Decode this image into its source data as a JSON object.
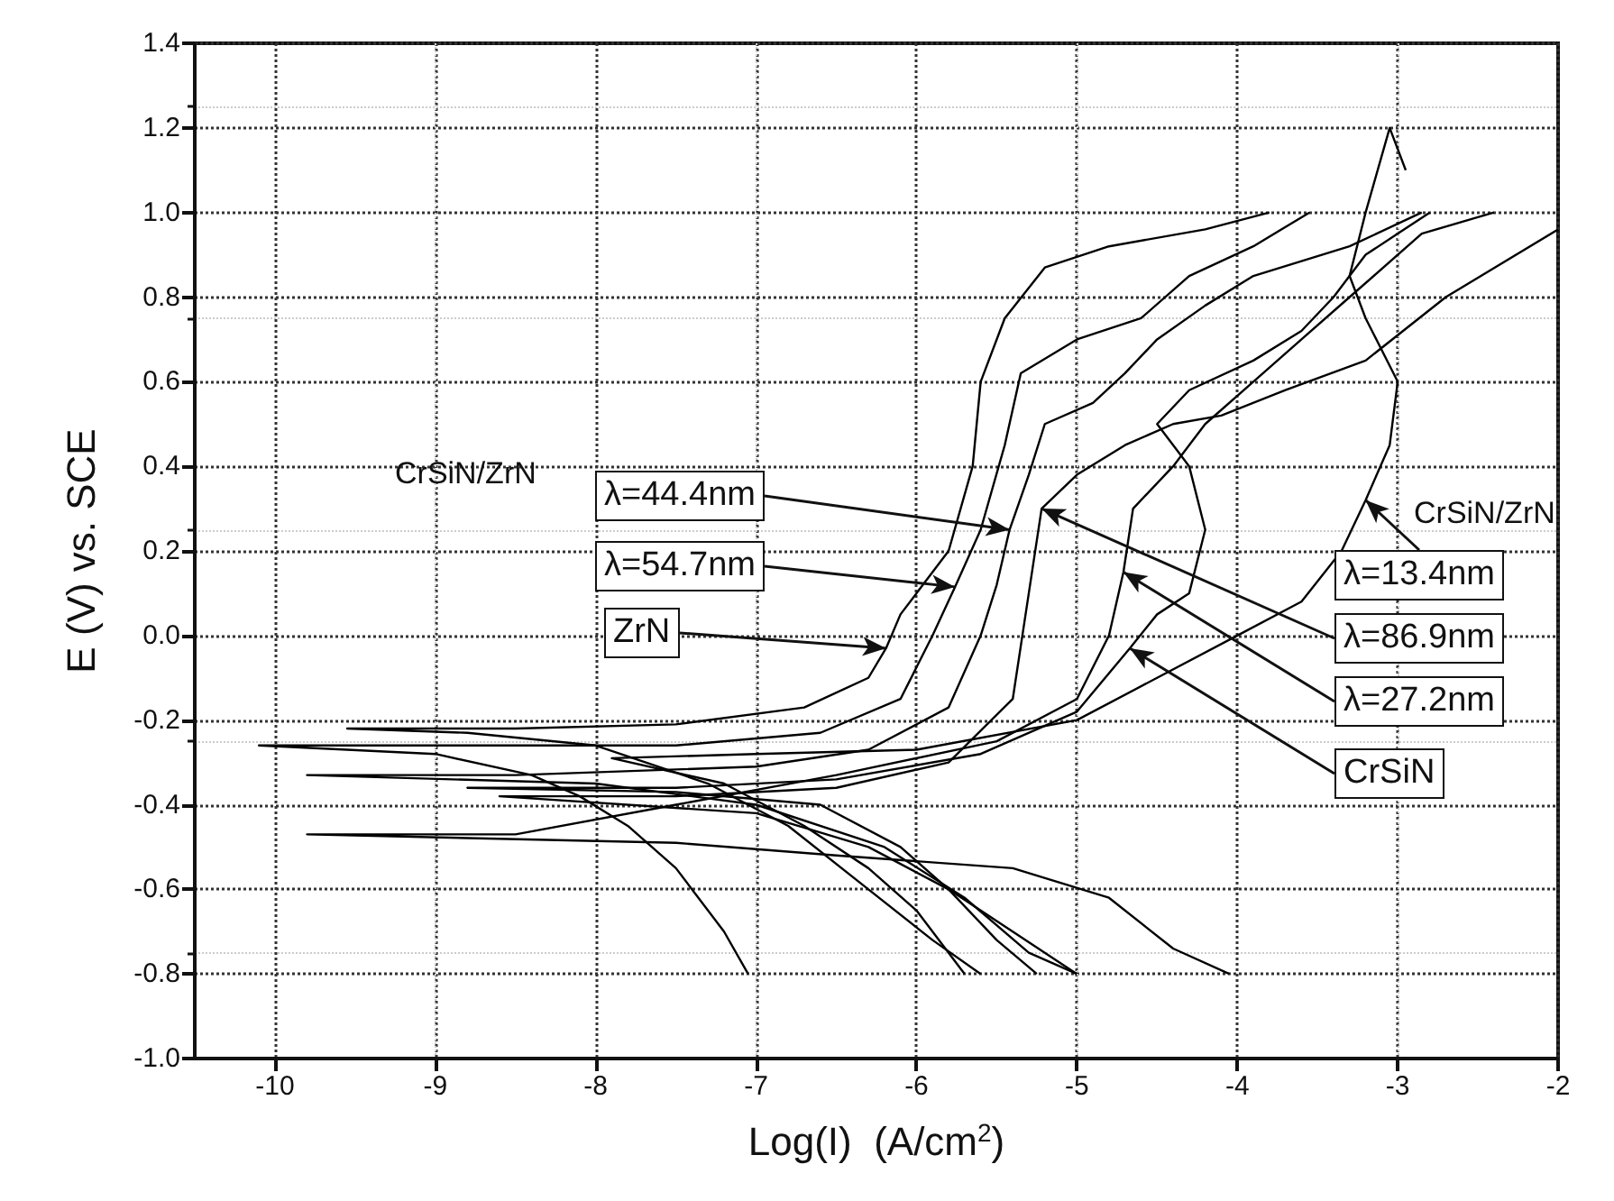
{
  "chart_data": {
    "type": "line",
    "xlabel": "Log(I)  (A/cm$^{2}$)",
    "ylabel": "E (V) vs. SCE",
    "xlim": [
      -10.5,
      -2
    ],
    "xticks": [
      -10,
      -9,
      -8,
      -7,
      -6,
      -5,
      -4,
      -3,
      -2
    ],
    "ylim": [
      -1,
      1.4
    ],
    "yticks": [
      {
        "value": -1,
        "label": "-1.0"
      },
      {
        "value": -0.8,
        "label": "-0.8"
      },
      {
        "value": -0.6,
        "label": "-0.6"
      },
      {
        "value": -0.4,
        "label": "-0.4"
      },
      {
        "value": -0.2,
        "label": "-0.2"
      },
      {
        "value": 0,
        "label": "0.0"
      },
      {
        "value": 0.2,
        "label": "0.2"
      },
      {
        "value": 0.4,
        "label": "0.4"
      },
      {
        "value": 0.6,
        "label": "0.6"
      },
      {
        "value": 0.8,
        "label": "0.8"
      },
      {
        "value": 1,
        "label": "1.0"
      },
      {
        "value": 1.2,
        "label": "1.2"
      },
      {
        "value": 1.4,
        "label": "1.4"
      }
    ],
    "grid": true,
    "line_style": "solid",
    "series": [
      {
        "color": "#000000",
        "x": [
          -5.6,
          -5.9,
          -6.3,
          -6.8,
          -7.3,
          -8,
          -8.8,
          -9.55,
          -8.5,
          -7.5,
          -6.7,
          -6.3,
          -6.19,
          -6.1,
          -5.8,
          -5.65,
          -5.6,
          -5.45,
          -5.2,
          -4.8,
          -4.2,
          -3.8
        ],
        "values": [
          -0.8,
          -0.72,
          -0.6,
          -0.45,
          -0.35,
          -0.26,
          -0.23,
          -0.22,
          -0.22,
          -0.21,
          -0.17,
          -0.1,
          -0.03,
          0.05,
          0.2,
          0.4,
          0.6,
          0.75,
          0.87,
          0.92,
          0.96,
          1.0
        ]
      },
      {
        "color": "#000000",
        "x": [
          -7.05,
          -7.2,
          -7.5,
          -7.8,
          -8.1,
          -8.4,
          -9,
          -10.1,
          -9,
          -7.5,
          -6.6,
          -6.1,
          -5.9,
          -5.76,
          -5.6,
          -5.45,
          -5.35,
          -5,
          -4.6,
          -4.3,
          -3.9,
          -3.55
        ],
        "values": [
          -0.8,
          -0.7,
          -0.55,
          -0.45,
          -0.38,
          -0.33,
          -0.28,
          -0.26,
          -0.26,
          -0.26,
          -0.23,
          -0.15,
          0,
          0.115,
          0.25,
          0.45,
          0.62,
          0.7,
          0.75,
          0.85,
          0.92,
          1.0
        ]
      },
      {
        "color": "#000000",
        "x": [
          -5,
          -5.3,
          -5.7,
          -6.2,
          -7,
          -8,
          -9.8,
          -8.5,
          -7,
          -6.3,
          -5.8,
          -5.6,
          -5.5,
          -5.42,
          -5.3,
          -5.2,
          -4.9,
          -4.7,
          -4.5,
          -4.2,
          -3.9,
          -3.3,
          -2.85
        ],
        "values": [
          -0.8,
          -0.75,
          -0.62,
          -0.5,
          -0.4,
          -0.35,
          -0.33,
          -0.33,
          -0.31,
          -0.27,
          -0.17,
          0,
          0.12,
          0.25,
          0.38,
          0.5,
          0.55,
          0.62,
          0.7,
          0.78,
          0.85,
          0.92,
          1.0
        ]
      },
      {
        "color": "#000000",
        "x": [
          -5.25,
          -5.5,
          -5.8,
          -6.3,
          -7,
          -8.6,
          -7.5,
          -6.5,
          -5.8,
          -5.4,
          -5.3,
          -5.22,
          -5,
          -4.7,
          -4.4,
          -4.1,
          -3.7,
          -3.2,
          -2.7,
          -2
        ],
        "values": [
          -0.8,
          -0.72,
          -0.6,
          -0.5,
          -0.42,
          -0.38,
          -0.38,
          -0.36,
          -0.3,
          -0.15,
          0.1,
          0.3,
          0.38,
          0.45,
          0.5,
          0.52,
          0.58,
          0.65,
          0.8,
          0.96
        ]
      },
      {
        "color": "#000000",
        "x": [
          -4.05,
          -4.4,
          -4.8,
          -5.4,
          -6.5,
          -7.5,
          -9.8,
          -8.5,
          -7.5,
          -6.5,
          -5.5,
          -5,
          -4.8,
          -4.71,
          -4.65,
          -4.4,
          -4.2,
          -3.9,
          -3.6,
          -3.3,
          -2.85,
          -2.4
        ],
        "values": [
          -0.8,
          -0.74,
          -0.62,
          -0.55,
          -0.52,
          -0.49,
          -0.47,
          -0.47,
          -0.4,
          -0.33,
          -0.25,
          -0.15,
          0,
          0.15,
          0.3,
          0.4,
          0.5,
          0.6,
          0.7,
          0.8,
          0.95,
          1.0
        ]
      },
      {
        "color": "#000000",
        "x": [
          -5,
          -5.4,
          -5.8,
          -6.1,
          -6.6,
          -7.5,
          -8.8,
          -7.5,
          -6.5,
          -5.6,
          -5,
          -4.67,
          -4.5,
          -4.3,
          -4.2,
          -4.3,
          -4.5,
          -4.3,
          -3.9,
          -3.6,
          -3.4,
          -3.2,
          -2.8
        ],
        "values": [
          -0.8,
          -0.7,
          -0.6,
          -0.5,
          -0.4,
          -0.37,
          -0.36,
          -0.36,
          -0.34,
          -0.28,
          -0.18,
          -0.03,
          0.05,
          0.1,
          0.25,
          0.4,
          0.5,
          0.58,
          0.65,
          0.72,
          0.8,
          0.9,
          1.0
        ]
      },
      {
        "color": "#000000",
        "x": [
          -5.7,
          -6,
          -6.3,
          -6.7,
          -7.2,
          -7.9,
          -7,
          -6,
          -5,
          -4.5,
          -4,
          -3.6,
          -3.35,
          -3.2,
          -3.05,
          -3,
          -3.2,
          -3.3,
          -3.2,
          -3.05,
          -2.95
        ],
        "values": [
          -0.8,
          -0.65,
          -0.55,
          -0.45,
          -0.35,
          -0.29,
          -0.28,
          -0.27,
          -0.2,
          -0.1,
          0,
          0.08,
          0.2,
          0.32,
          0.45,
          0.6,
          0.75,
          0.85,
          1.0,
          1.2,
          1.1
        ]
      }
    ],
    "annotations": [
      "CrSiN/ZrN",
      {
        "text": "λ=44.4nm",
        "x": -5.42,
        "y": 0.25
      },
      {
        "text": "λ=54.7nm",
        "x": -5.76,
        "y": 0.115
      },
      {
        "text": "ZrN",
        "x": -6.19,
        "y": -0.03
      },
      "CrSiN/ZrN",
      {
        "text": "λ=13.4nm",
        "x": -3.2,
        "y": 0.32
      },
      {
        "text": "λ=86.9nm",
        "x": -5.22,
        "y": 0.3
      },
      {
        "text": "λ=27.2nm",
        "x": -4.71,
        "y": 0.15
      },
      {
        "text": "CrSiN",
        "x": -4.67,
        "y": -0.03
      }
    ]
  }
}
